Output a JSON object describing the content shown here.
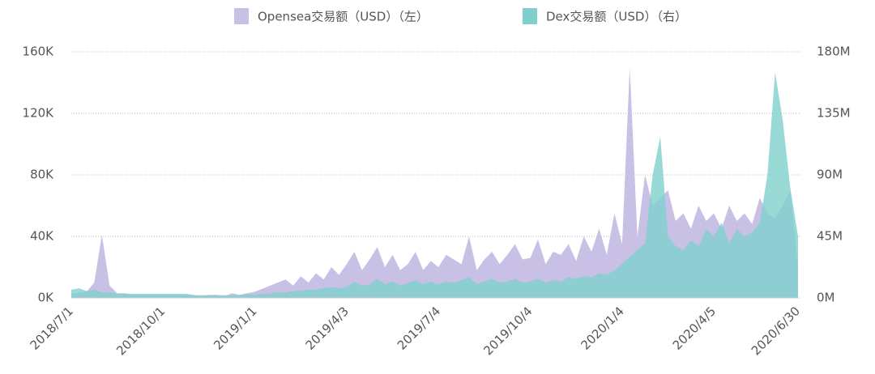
{
  "chart_data": {
    "type": "area",
    "x": [
      "2018/7/1",
      null,
      null,
      null,
      null,
      null,
      null,
      null,
      null,
      null,
      null,
      null,
      "2018/10/1",
      null,
      null,
      null,
      null,
      null,
      null,
      null,
      null,
      null,
      null,
      null,
      "2019/1/1",
      null,
      null,
      null,
      null,
      null,
      null,
      null,
      null,
      null,
      null,
      null,
      "2019/4/3",
      null,
      null,
      null,
      null,
      null,
      null,
      null,
      null,
      null,
      null,
      null,
      "2019/7/4",
      null,
      null,
      null,
      null,
      null,
      null,
      null,
      null,
      null,
      null,
      null,
      "2019/10/4",
      null,
      null,
      null,
      null,
      null,
      null,
      null,
      null,
      null,
      null,
      null,
      "2020/1/4",
      null,
      null,
      null,
      null,
      null,
      null,
      null,
      null,
      null,
      null,
      null,
      "2020/4/5",
      null,
      null,
      null,
      null,
      null,
      null,
      null,
      null,
      null,
      null,
      "2020/6/30"
    ],
    "series": [
      {
        "name": "Opensea交易额（USD）（左）",
        "color": "#c9c0e6",
        "axis": "y",
        "values": [
          3,
          3,
          4,
          10,
          41,
          8,
          3,
          3,
          2,
          2,
          2,
          2,
          2,
          2,
          2,
          2,
          2,
          1,
          2,
          2,
          1,
          3,
          2,
          3,
          4,
          6,
          8,
          10,
          12,
          8,
          14,
          10,
          16,
          12,
          20,
          15,
          22,
          30,
          18,
          25,
          33,
          20,
          28,
          18,
          22,
          30,
          18,
          24,
          20,
          28,
          25,
          22,
          40,
          18,
          25,
          30,
          22,
          28,
          35,
          25,
          26,
          38,
          22,
          30,
          28,
          35,
          24,
          40,
          30,
          45,
          28,
          55,
          35,
          150,
          40,
          80,
          60,
          65,
          70,
          50,
          55,
          45,
          60,
          50,
          55,
          45,
          60,
          50,
          55,
          48,
          65,
          55,
          52,
          60,
          70,
          20
        ]
      },
      {
        "name": "Dex交易额（USD）（右）",
        "color": "#7fd0cc",
        "axis": "y2",
        "values": [
          6,
          7,
          5,
          6,
          4,
          4,
          3,
          3,
          3,
          3,
          3,
          3,
          3,
          3,
          3,
          3,
          2,
          2,
          2,
          2,
          2,
          2,
          2,
          3,
          2,
          3,
          3,
          4,
          4,
          5,
          5,
          6,
          6,
          7,
          8,
          7,
          8,
          12,
          9,
          10,
          14,
          10,
          12,
          9,
          11,
          13,
          10,
          12,
          10,
          12,
          11,
          13,
          15,
          10,
          12,
          14,
          11,
          12,
          14,
          11,
          12,
          14,
          11,
          13,
          12,
          15,
          14,
          16,
          15,
          18,
          17,
          20,
          25,
          30,
          35,
          40,
          90,
          118,
          45,
          38,
          35,
          42,
          38,
          50,
          45,
          55,
          40,
          50,
          45,
          48,
          55,
          90,
          165,
          130,
          80,
          45
        ]
      }
    ],
    "ylim": [
      0,
      160
    ],
    "yticks": [
      {
        "value": 0,
        "label": "0K"
      },
      {
        "value": 40,
        "label": "40K"
      },
      {
        "value": 80,
        "label": "80K"
      },
      {
        "value": 120,
        "label": "120K"
      },
      {
        "value": 160,
        "label": "160K"
      }
    ],
    "y2lim": [
      0,
      180
    ],
    "y2ticks": [
      {
        "value": 0,
        "label": "0M"
      },
      {
        "value": 45,
        "label": "45M"
      },
      {
        "value": 90,
        "label": "90M"
      },
      {
        "value": 135,
        "label": "135M"
      },
      {
        "value": 180,
        "label": "180M"
      }
    ],
    "grid": true,
    "legend": "top"
  }
}
